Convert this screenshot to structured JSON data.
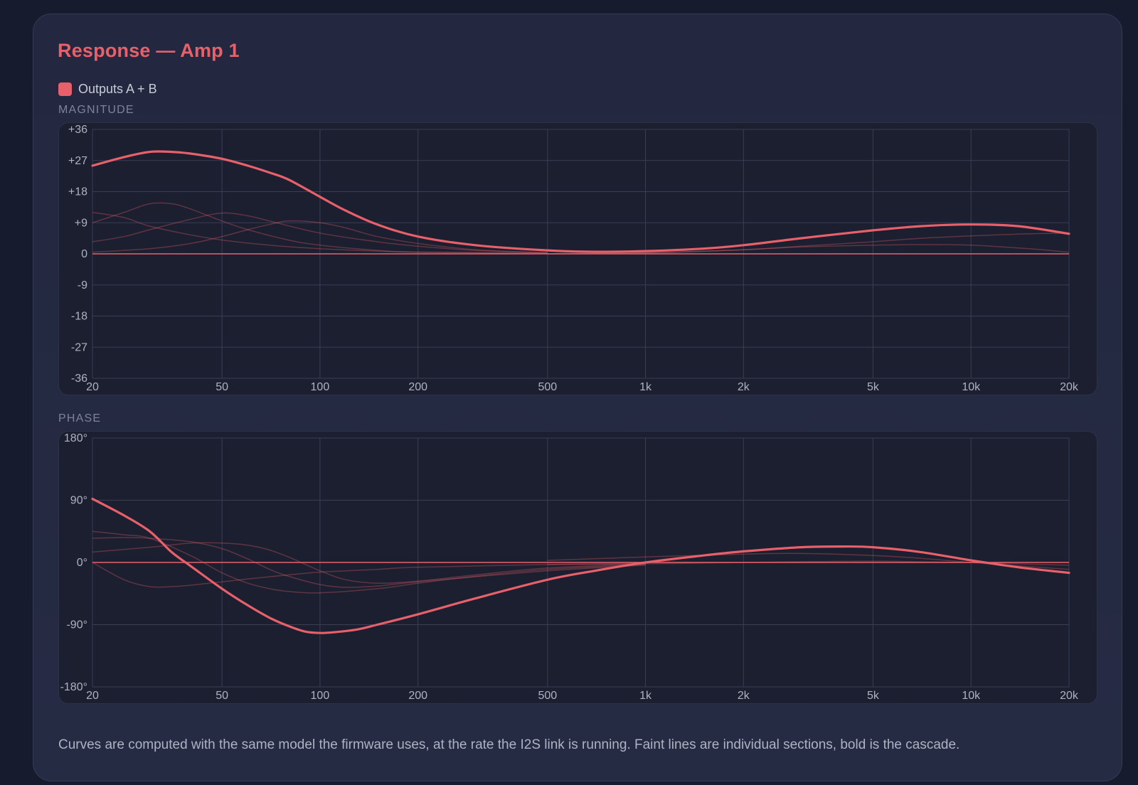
{
  "panel": {
    "title": "Response — Amp 1",
    "legend_label": "Outputs A + B",
    "magnitude_label": "MAGNITUDE",
    "phase_label": "PHASE",
    "footnote": "Curves are computed with the same model the firmware uses, at the rate the I2S link is running. Faint lines are individual sections, bold is the cascade."
  },
  "colors": {
    "accent": "#e8606a",
    "grid": "#393e55",
    "tick_text": "#aeb2c3",
    "plot_bg": "#1c1f30"
  },
  "chart_data": [
    {
      "type": "line",
      "name": "magnitude",
      "x_scale": "log",
      "xlim": [
        20,
        20000
      ],
      "ylim": [
        -36,
        36
      ],
      "x_ticks": [
        20,
        50,
        100,
        200,
        500,
        1000,
        2000,
        5000,
        10000,
        20000
      ],
      "x_tick_labels": [
        "20",
        "50",
        "100",
        "200",
        "500",
        "1k",
        "2k",
        "5k",
        "10k",
        "20k"
      ],
      "y_ticks": [
        36,
        27,
        18,
        9,
        0,
        -9,
        -18,
        -27,
        -36
      ],
      "y_tick_labels": [
        "+36",
        "+27",
        "+18",
        "+9",
        "0",
        "-9",
        "-18",
        "-27",
        "-36"
      ],
      "grid": true,
      "reference_value": 0,
      "cascade": {
        "x": [
          20,
          25,
          30,
          35,
          40,
          50,
          60,
          70,
          80,
          100,
          120,
          150,
          200,
          300,
          500,
          700,
          1000,
          1500,
          2000,
          3000,
          5000,
          7000,
          10000,
          14000,
          20000
        ],
        "y": [
          25.5,
          28,
          29.5,
          29.5,
          29,
          27.5,
          25.5,
          23.5,
          21.5,
          16.5,
          12.5,
          8.5,
          5,
          2.5,
          1,
          0.6,
          0.8,
          1.5,
          2.5,
          4.5,
          6.8,
          8,
          8.5,
          8,
          5.8
        ]
      },
      "sections": [
        {
          "x": [
            20,
            25,
            30,
            40,
            50,
            70,
            100,
            150,
            200,
            500
          ],
          "y": [
            12,
            10.5,
            8,
            5.5,
            4,
            2.5,
            1.5,
            0.8,
            0.5,
            0.1
          ]
        },
        {
          "x": [
            20,
            25,
            30,
            35,
            40,
            50,
            60,
            80,
            100,
            150,
            200,
            500
          ],
          "y": [
            9,
            12,
            14.5,
            14.5,
            13,
            9.5,
            7,
            4,
            2.5,
            1,
            0.5,
            0.1
          ]
        },
        {
          "x": [
            20,
            25,
            30,
            40,
            50,
            60,
            70,
            100,
            150,
            200,
            300,
            500
          ],
          "y": [
            3.5,
            5,
            7,
            10,
            11.8,
            11,
            9.5,
            6,
            3.5,
            2.2,
            1,
            0.3
          ]
        },
        {
          "x": [
            20,
            30,
            40,
            50,
            60,
            70,
            80,
            100,
            120,
            150,
            200,
            300,
            500
          ],
          "y": [
            0.5,
            1.5,
            3,
            5,
            7,
            8.5,
            9.5,
            9,
            7.5,
            5,
            3,
            1.2,
            0.3
          ]
        },
        {
          "x": [
            500,
            1000,
            2000,
            3000,
            5000,
            7000,
            10000,
            15000,
            20000
          ],
          "y": [
            0,
            0.3,
            1.2,
            2,
            2.5,
            2.7,
            2.5,
            1.5,
            0.5
          ]
        },
        {
          "x": [
            500,
            1000,
            2000,
            3000,
            5000,
            7000,
            10000,
            15000,
            20000
          ],
          "y": [
            0,
            0.3,
            1.2,
            2.2,
            3.5,
            4.5,
            5.2,
            5.8,
            6
          ]
        }
      ]
    },
    {
      "type": "line",
      "name": "phase",
      "x_scale": "log",
      "xlim": [
        20,
        20000
      ],
      "ylim": [
        -180,
        180
      ],
      "x_ticks": [
        20,
        50,
        100,
        200,
        500,
        1000,
        2000,
        5000,
        10000,
        20000
      ],
      "x_tick_labels": [
        "20",
        "50",
        "100",
        "200",
        "500",
        "1k",
        "2k",
        "5k",
        "10k",
        "20k"
      ],
      "y_ticks": [
        180,
        90,
        0,
        -90,
        -180
      ],
      "y_tick_labels": [
        "180°",
        "90°",
        "0°",
        "-90°",
        "-180°"
      ],
      "grid": true,
      "reference_value": 0,
      "cascade": {
        "x": [
          20,
          25,
          30,
          35,
          40,
          50,
          60,
          70,
          80,
          90,
          100,
          110,
          130,
          150,
          200,
          300,
          500,
          700,
          1000,
          1500,
          2000,
          3000,
          4000,
          5000,
          7000,
          10000,
          14000,
          20000
        ],
        "y": [
          92,
          68,
          45,
          15,
          -5,
          -38,
          -62,
          -80,
          -92,
          -100,
          -102,
          -101,
          -97,
          -90,
          -75,
          -52,
          -25,
          -12,
          0,
          10,
          16,
          22,
          23,
          22,
          15,
          3,
          -7,
          -15
        ]
      },
      "sections": [
        {
          "x": [
            20,
            25,
            30,
            40,
            50,
            60,
            70,
            80,
            100,
            150,
            200,
            300,
            500,
            1000
          ],
          "y": [
            45,
            40,
            35,
            10,
            -15,
            -30,
            -38,
            -42,
            -44,
            -38,
            -30,
            -20,
            -10,
            -3
          ]
        },
        {
          "x": [
            20,
            25,
            30,
            40,
            50,
            60,
            70,
            80,
            100,
            120,
            150,
            200,
            500,
            1000
          ],
          "y": [
            35,
            36,
            35,
            30,
            20,
            5,
            -10,
            -20,
            -32,
            -36,
            -34,
            -28,
            -12,
            -4
          ]
        },
        {
          "x": [
            20,
            30,
            40,
            50,
            60,
            70,
            80,
            100,
            120,
            150,
            200,
            300,
            500,
            1000
          ],
          "y": [
            15,
            22,
            28,
            28,
            25,
            18,
            8,
            -12,
            -25,
            -30,
            -27,
            -18,
            -8,
            -2
          ]
        },
        {
          "x": [
            20,
            25,
            30,
            35,
            40,
            50,
            60,
            80,
            100,
            150,
            200,
            500,
            1000
          ],
          "y": [
            0,
            -25,
            -35,
            -35,
            -33,
            -28,
            -24,
            -18,
            -14,
            -10,
            -7,
            -3,
            -1
          ]
        },
        {
          "x": [
            500,
            1000,
            2000,
            3000,
            5000,
            7000,
            10000,
            14000,
            20000
          ],
          "y": [
            3,
            8,
            12,
            13,
            10,
            6,
            0,
            -5,
            -10
          ]
        },
        {
          "x": [
            500,
            1000,
            2000,
            3000,
            5000,
            7000,
            10000,
            14000,
            20000
          ],
          "y": [
            -3,
            -2,
            0,
            1,
            2,
            1,
            0,
            -2,
            -4
          ]
        }
      ]
    }
  ]
}
